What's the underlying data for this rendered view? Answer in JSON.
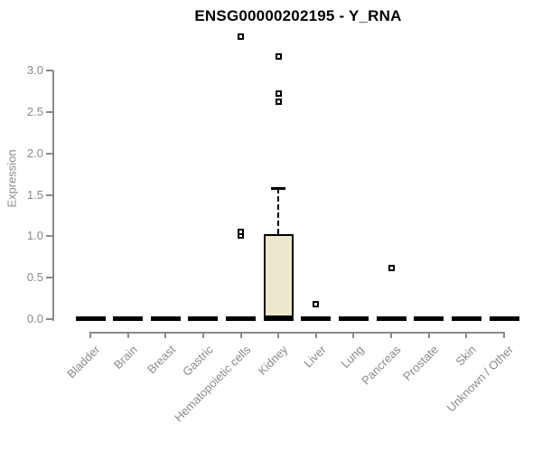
{
  "chart_data": {
    "type": "boxplot",
    "title": "ENSG00000202195 - Y_RNA",
    "ylabel": "Expression",
    "xlabel": "",
    "ylim": [
      0,
      3.0
    ],
    "yticks": [
      "0.0",
      "0.5",
      "1.0",
      "1.5",
      "2.0",
      "2.5",
      "3.0"
    ],
    "grid": false,
    "legend": false,
    "categories": [
      "Bladder",
      "Brain",
      "Breast",
      "Gastric",
      "Hematopoietic cells",
      "Kidney",
      "Liver",
      "Lung",
      "Pancreas",
      "Prostate",
      "Skin",
      "Unknown / Other"
    ],
    "boxes": [
      {
        "category": "Bladder",
        "q1": 0,
        "median": 0.01,
        "q3": 0,
        "whisker_low": 0,
        "whisker_high": 0,
        "outliers": []
      },
      {
        "category": "Brain",
        "q1": 0,
        "median": 0.01,
        "q3": 0,
        "whisker_low": 0,
        "whisker_high": 0,
        "outliers": []
      },
      {
        "category": "Breast",
        "q1": 0,
        "median": 0.01,
        "q3": 0,
        "whisker_low": 0,
        "whisker_high": 0,
        "outliers": []
      },
      {
        "category": "Gastric",
        "q1": 0,
        "median": 0.01,
        "q3": 0,
        "whisker_low": 0,
        "whisker_high": 0,
        "outliers": []
      },
      {
        "category": "Hematopoietic cells",
        "q1": 0,
        "median": 0.01,
        "q3": 0,
        "whisker_low": 0,
        "whisker_high": 0,
        "outliers": [
          1.01,
          1.05,
          3.41
        ]
      },
      {
        "category": "Kidney",
        "q1": 0,
        "median": 0.02,
        "q3": 1.03,
        "whisker_low": 0,
        "whisker_high": 1.58,
        "outliers": [
          2.62,
          2.72,
          3.17
        ]
      },
      {
        "category": "Liver",
        "q1": 0,
        "median": 0.01,
        "q3": 0,
        "whisker_low": 0,
        "whisker_high": 0,
        "outliers": [
          0.18
        ]
      },
      {
        "category": "Lung",
        "q1": 0,
        "median": 0.01,
        "q3": 0,
        "whisker_low": 0,
        "whisker_high": 0,
        "outliers": []
      },
      {
        "category": "Pancreas",
        "q1": 0,
        "median": 0.01,
        "q3": 0,
        "whisker_low": 0,
        "whisker_high": 0,
        "outliers": [
          0.62
        ]
      },
      {
        "category": "Prostate",
        "q1": 0,
        "median": 0.01,
        "q3": 0,
        "whisker_low": 0,
        "whisker_high": 0,
        "outliers": []
      },
      {
        "category": "Skin",
        "q1": 0,
        "median": 0.01,
        "q3": 0,
        "whisker_low": 0,
        "whisker_high": 0,
        "outliers": []
      },
      {
        "category": "Unknown / Other",
        "q1": 0,
        "median": 0.01,
        "q3": 0,
        "whisker_low": 0,
        "whisker_high": 0,
        "outliers": []
      }
    ],
    "colors": {
      "box_fill": "#ece8cd",
      "box_border": "#000000",
      "median": "#000000",
      "whisker": "#000000",
      "outlier_border": "#000000",
      "outlier_fill": "#ffffff",
      "axis": "#8a8a8a",
      "tick_text": "#8a8a8a",
      "title_text": "#000000",
      "background": "#ffffff"
    }
  }
}
